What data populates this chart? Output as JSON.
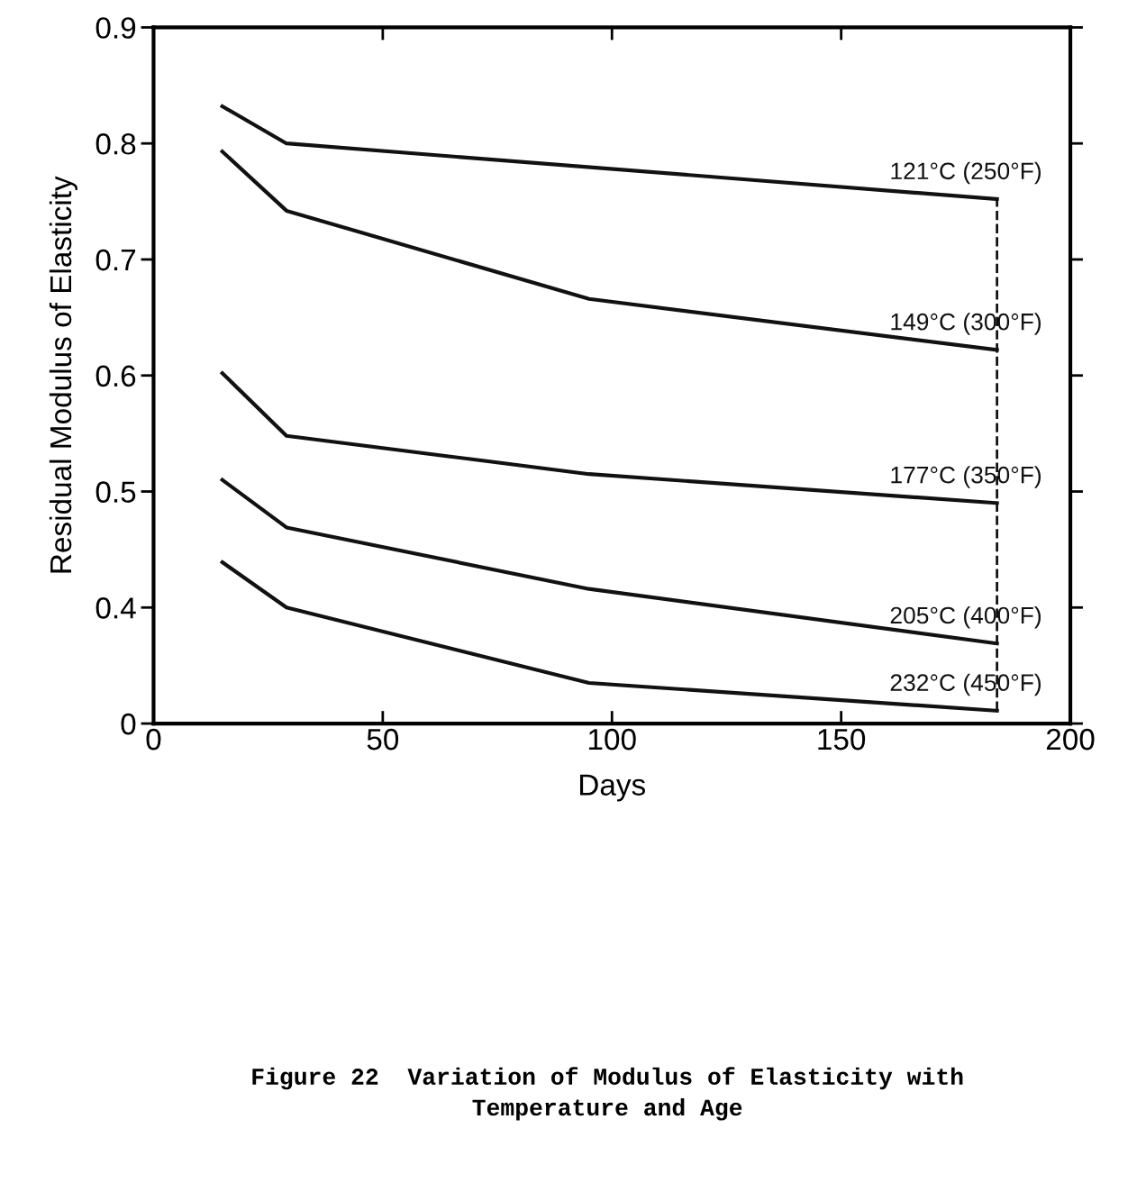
{
  "chart_data": {
    "type": "line",
    "xlabel": "Days",
    "ylabel": "Residual Modulus of Elasticity",
    "xlim": [
      0,
      200
    ],
    "xticks": [
      0,
      50,
      100,
      150,
      200
    ],
    "ylim": [
      0.3,
      0.9
    ],
    "yticks": [
      {
        "value": 0.3,
        "label": "0"
      },
      0.4,
      0.5,
      0.6,
      0.7,
      0.8,
      0.9
    ],
    "grid": false,
    "legend": false,
    "marker": "none",
    "line_style": "solid",
    "series": [
      {
        "name": "121°C (250°F)",
        "color": "#111111",
        "x": [
          15,
          29,
          184
        ],
        "values": [
          0.832,
          0.8,
          0.752
        ]
      },
      {
        "name": "149°C (300°F)",
        "color": "#111111",
        "x": [
          15,
          29,
          95,
          184
        ],
        "values": [
          0.793,
          0.742,
          0.666,
          0.622
        ]
      },
      {
        "name": "177°C (350°F)",
        "color": "#111111",
        "x": [
          15,
          29,
          95,
          184
        ],
        "values": [
          0.602,
          0.548,
          0.515,
          0.49
        ]
      },
      {
        "name": "205°C (400°F)",
        "color": "#111111",
        "x": [
          15,
          29,
          95,
          184
        ],
        "values": [
          0.51,
          0.469,
          0.416,
          0.369
        ]
      },
      {
        "name": "232°C (450°F)",
        "color": "#111111",
        "x": [
          15,
          29,
          95,
          184
        ],
        "values": [
          0.439,
          0.4,
          0.335,
          0.311
        ]
      }
    ],
    "ref_lines": [
      {
        "axis": "x",
        "value": 184,
        "label": null,
        "color": "#111111",
        "line_style": "dashed"
      }
    ],
    "annotations": [
      "Figure 22  Variation of Modulus of Elasticity with\nTemperature and Age"
    ]
  }
}
